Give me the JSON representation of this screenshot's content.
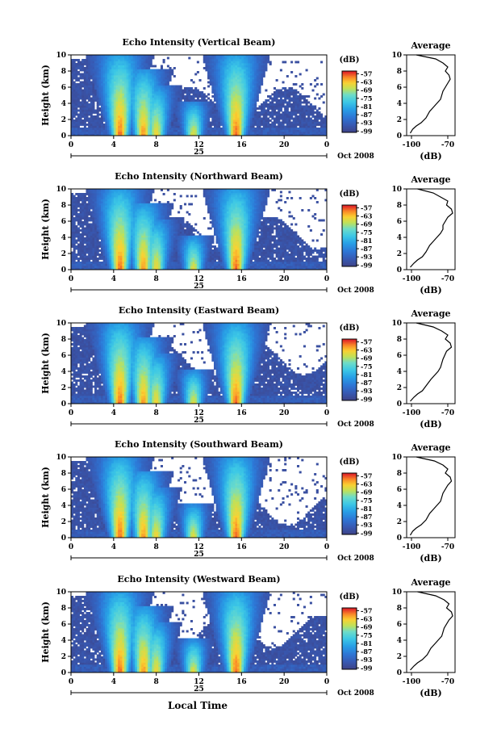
{
  "chart_data": {
    "type": "heatmap",
    "x_axis": {
      "label": "Local Time",
      "ticks": [
        "0",
        "4",
        "8",
        "12",
        "16",
        "20",
        "0"
      ],
      "date_label": "25",
      "month_year": "Oct 2008",
      "xlim": [
        0,
        24
      ]
    },
    "y_axis": {
      "label": "Height (km)",
      "ticks": [
        "0",
        "2",
        "4",
        "6",
        "8",
        "10"
      ],
      "ylim": [
        0,
        10
      ]
    },
    "colorbar": {
      "unit": "(dB)",
      "ticks": [
        "-57",
        "-63",
        "-69",
        "-75",
        "-81",
        "-87",
        "-93",
        "-99"
      ],
      "range": [
        -100,
        -55
      ]
    },
    "profile": {
      "title": "Average",
      "xlabel": "(dB)",
      "xticks": [
        "-100",
        "-70"
      ],
      "xlim": [
        -104,
        -64
      ],
      "yticks": [
        "0",
        "2",
        "4",
        "6",
        "8",
        "10"
      ],
      "ylim": [
        0,
        10
      ]
    },
    "panels": [
      {
        "title": "Echo Intensity (Vertical Beam)",
        "profile": [
          [
            -101,
            0.3
          ],
          [
            -99,
            0.8
          ],
          [
            -96,
            1.2
          ],
          [
            -92,
            1.6
          ],
          [
            -88,
            2.2
          ],
          [
            -85,
            3
          ],
          [
            -82,
            3.5
          ],
          [
            -79,
            4
          ],
          [
            -76,
            4.5
          ],
          [
            -75,
            5
          ],
          [
            -74,
            5.5
          ],
          [
            -70,
            6.5
          ],
          [
            -68,
            7
          ],
          [
            -69,
            7.5
          ],
          [
            -72,
            8
          ],
          [
            -70,
            8.5
          ],
          [
            -74,
            9
          ],
          [
            -80,
            9.5
          ],
          [
            -96,
            10
          ]
        ]
      },
      {
        "title": "Echo Intensity (Northward Beam)",
        "profile": [
          [
            -101,
            0.3
          ],
          [
            -98,
            0.8
          ],
          [
            -95,
            1.2
          ],
          [
            -91,
            1.6
          ],
          [
            -88,
            2.2
          ],
          [
            -85,
            3
          ],
          [
            -82,
            3.5
          ],
          [
            -79,
            4
          ],
          [
            -76,
            4.5
          ],
          [
            -74,
            5
          ],
          [
            -74,
            5.5
          ],
          [
            -70,
            6.5
          ],
          [
            -66,
            7
          ],
          [
            -67,
            7.5
          ],
          [
            -71,
            8
          ],
          [
            -70,
            8.5
          ],
          [
            -76,
            9
          ],
          [
            -82,
            9.5
          ],
          [
            -95,
            10
          ]
        ]
      },
      {
        "title": "Echo Intensity (Eastward Beam)",
        "profile": [
          [
            -101,
            0.3
          ],
          [
            -98,
            0.8
          ],
          [
            -95,
            1.2
          ],
          [
            -91,
            1.6
          ],
          [
            -88,
            2.2
          ],
          [
            -84,
            3
          ],
          [
            -81,
            3.5
          ],
          [
            -78,
            4
          ],
          [
            -76,
            4.5
          ],
          [
            -75,
            5
          ],
          [
            -74,
            5.5
          ],
          [
            -71,
            6.5
          ],
          [
            -67,
            7
          ],
          [
            -68,
            7.5
          ],
          [
            -72,
            8
          ],
          [
            -70,
            8.5
          ],
          [
            -75,
            9
          ],
          [
            -82,
            9.5
          ],
          [
            -96,
            10
          ]
        ]
      },
      {
        "title": "Echo Intensity (Southward Beam)",
        "profile": [
          [
            -101,
            0.3
          ],
          [
            -99,
            0.8
          ],
          [
            -96,
            1.2
          ],
          [
            -92,
            1.6
          ],
          [
            -88,
            2.2
          ],
          [
            -85,
            3
          ],
          [
            -82,
            3.5
          ],
          [
            -79,
            4
          ],
          [
            -76,
            4.5
          ],
          [
            -75,
            5
          ],
          [
            -74,
            5.5
          ],
          [
            -70,
            6.5
          ],
          [
            -67,
            7
          ],
          [
            -68,
            7.5
          ],
          [
            -72,
            8
          ],
          [
            -70,
            8.5
          ],
          [
            -74,
            9
          ],
          [
            -81,
            9.5
          ],
          [
            -96,
            10
          ]
        ]
      },
      {
        "title": "Echo Intensity (Westward Beam)",
        "profile": [
          [
            -101,
            0.3
          ],
          [
            -98,
            0.8
          ],
          [
            -95,
            1.2
          ],
          [
            -91,
            1.6
          ],
          [
            -87,
            2.2
          ],
          [
            -84,
            3
          ],
          [
            -81,
            3.5
          ],
          [
            -78,
            4
          ],
          [
            -75,
            4.5
          ],
          [
            -74,
            5
          ],
          [
            -73,
            5.5
          ],
          [
            -69,
            6.5
          ],
          [
            -66,
            7
          ],
          [
            -67,
            7.5
          ],
          [
            -71,
            8
          ],
          [
            -69,
            8.5
          ],
          [
            -73,
            9
          ],
          [
            -80,
            9.5
          ],
          [
            -95,
            10
          ]
        ]
      }
    ],
    "storm_events": [
      {
        "t": 4.6,
        "peak_km": 10,
        "core_dB": -57
      },
      {
        "t": 6.8,
        "peak_km": 8,
        "core_dB": -59
      },
      {
        "t": 8.0,
        "peak_km": 6,
        "core_dB": -63
      },
      {
        "t": 11.5,
        "peak_km": 4,
        "core_dB": -64
      },
      {
        "t": 15.5,
        "peak_km": 10,
        "core_dB": -57
      }
    ]
  }
}
